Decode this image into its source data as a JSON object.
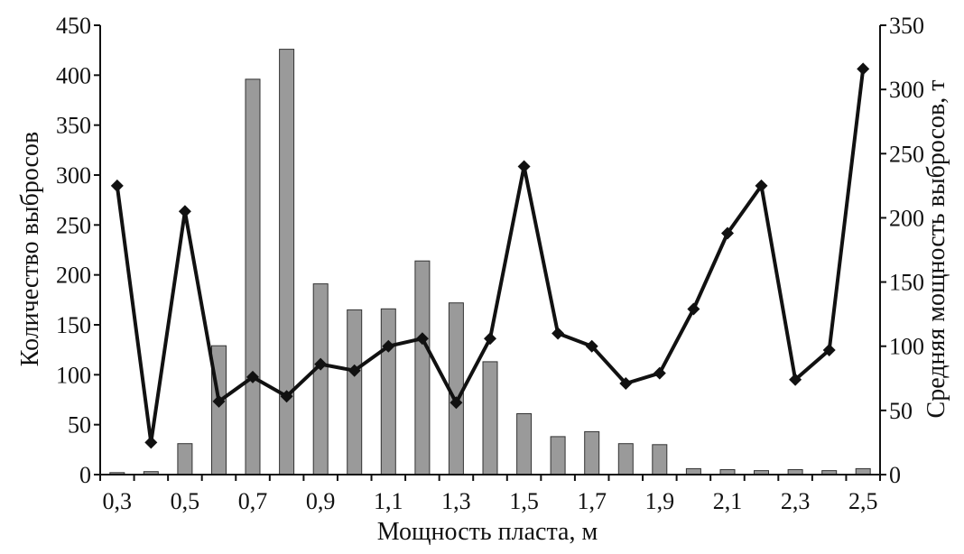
{
  "chart_data": {
    "type": "bar",
    "xlabel": "Мощность пласта, м",
    "ylabel_left": "Количество выбросов",
    "ylabel_right": "Средняя мощность выбросов, т",
    "categories": [
      "0,3",
      "0,4",
      "0,5",
      "0,6",
      "0,7",
      "0,8",
      "0,9",
      "1,0",
      "1,1",
      "1,2",
      "1,3",
      "1,4",
      "1,5",
      "1,6",
      "1,7",
      "1,8",
      "1,9",
      "2,0",
      "2,1",
      "2,2",
      "2,3",
      "2,4",
      "2,5"
    ],
    "x_tick_labels": [
      "0,3",
      "0,5",
      "0,7",
      "0,9",
      "1,1",
      "1,3",
      "1,5",
      "1,7",
      "1,9",
      "2,1",
      "2,3",
      "2,5"
    ],
    "left_axis": {
      "min": 0,
      "max": 450,
      "step": 50,
      "ticks": [
        "0",
        "50",
        "100",
        "150",
        "200",
        "250",
        "300",
        "350",
        "400",
        "450"
      ]
    },
    "right_axis": {
      "min": 0,
      "max": 350,
      "step": 50,
      "ticks": [
        "0",
        "50",
        "100",
        "150",
        "200",
        "250",
        "300",
        "350"
      ]
    },
    "bar_series": {
      "axis": "left",
      "color": "#9a9a9a",
      "values": [
        2,
        3,
        31,
        129,
        396,
        426,
        191,
        165,
        166,
        214,
        172,
        113,
        61,
        38,
        43,
        31,
        30,
        6,
        5,
        4,
        5,
        4,
        6
      ]
    },
    "line_series": {
      "axis": "right",
      "color": "#111111",
      "marker": "diamond",
      "values": [
        225,
        25,
        205,
        57,
        76,
        61,
        86,
        81,
        100,
        106,
        56,
        106,
        240,
        110,
        100,
        71,
        79,
        129,
        188,
        225,
        74,
        97,
        316
      ]
    },
    "grid": false
  }
}
